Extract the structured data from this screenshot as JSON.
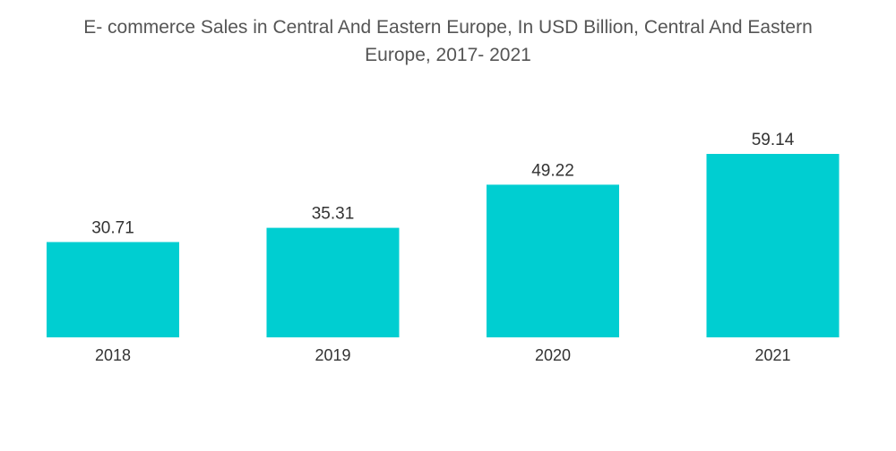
{
  "title": {
    "line1": "E- commerce Sales in Central And Eastern Europe, In USD Billion, Central And Eastern",
    "line2": "Europe, 2017- 2021"
  },
  "colors": {
    "bar": "#00CED1",
    "text": "#333333",
    "title": "#555555"
  },
  "chart_data": {
    "type": "bar",
    "title": "E- commerce Sales in Central And Eastern Europe, In USD Billion, Central And Eastern Europe, 2017- 2021",
    "categories": [
      "2018",
      "2019",
      "2020",
      "2021"
    ],
    "values": [
      30.71,
      35.31,
      49.22,
      59.14
    ],
    "value_labels": [
      "30.71",
      "35.31",
      "49.22",
      "59.14"
    ],
    "xlabel": "",
    "ylabel": "",
    "ylim": [
      0,
      59.14
    ],
    "grid": false,
    "legend": "none"
  }
}
